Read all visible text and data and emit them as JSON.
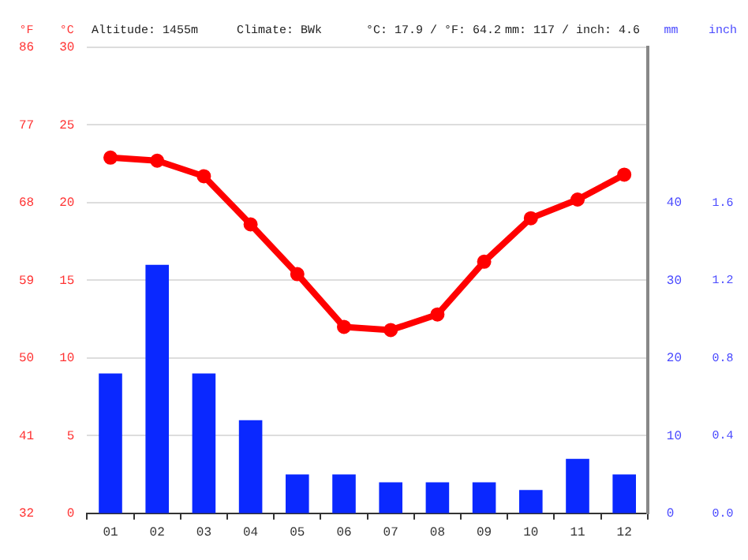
{
  "chart_data": {
    "type": "bar",
    "categories": [
      "01",
      "02",
      "03",
      "04",
      "05",
      "06",
      "07",
      "08",
      "09",
      "10",
      "11",
      "12"
    ],
    "series": [
      {
        "axis": "y2",
        "color": "#0a28ff",
        "values": [
          18,
          32,
          18,
          12,
          5,
          5,
          4,
          4,
          4,
          3,
          7,
          5
        ]
      },
      {
        "type": "line",
        "axis": "y",
        "color": "#ff0000",
        "marker": "circle",
        "values": [
          22.9,
          22.7,
          21.7,
          18.6,
          15.4,
          12.0,
          11.8,
          12.8,
          16.2,
          19.0,
          20.2,
          21.8
        ]
      }
    ],
    "ylabel": "°C",
    "y3label": "°F",
    "y2label": "mm",
    "ylim": [
      0,
      30
    ],
    "yticks": [
      0,
      5,
      10,
      15,
      20,
      25,
      30
    ],
    "y3lim": [
      32,
      86
    ],
    "y3ticks": [
      32,
      41,
      50,
      59,
      68,
      77,
      86
    ],
    "y2lim": [
      0,
      60
    ],
    "y2ticks": [
      0,
      10,
      20,
      30,
      40
    ],
    "annotations": [
      "Altitude: 1455m",
      "Climate: BWk",
      "°C: 17.9 / °F: 64.2",
      "mm: 117 / inch: 4.6",
      "inch",
      "0.0",
      "0.4",
      "0.8",
      "1.2",
      "1.6"
    ],
    "grid": "y",
    "legend": false
  }
}
